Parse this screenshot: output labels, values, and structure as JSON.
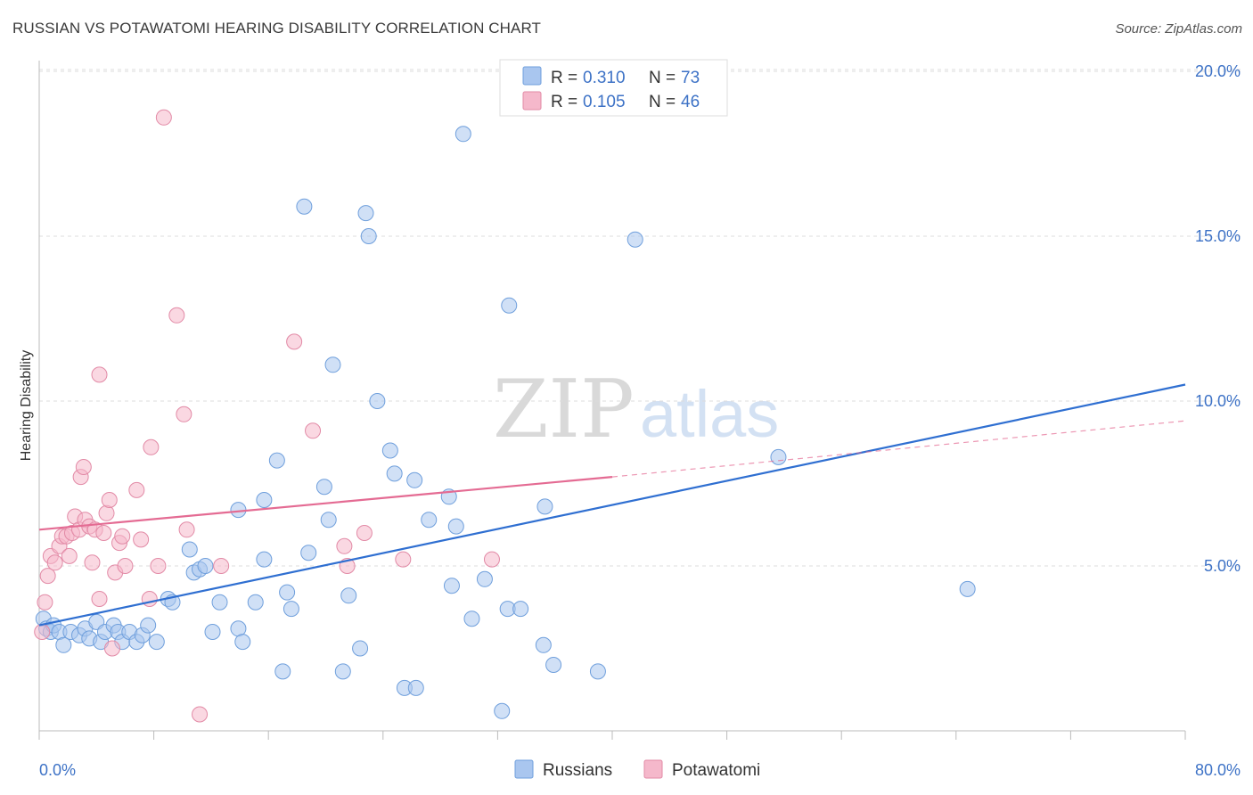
{
  "title": "RUSSIAN VS POTAWATOMI HEARING DISABILITY CORRELATION CHART",
  "source": "Source: ZipAtlas.com",
  "watermark": {
    "zip": "ZIP",
    "atlas": "atlas"
  },
  "legend": {
    "rows": [
      {
        "r_label": "R =",
        "r_value": "0.310",
        "n_label": "N =",
        "n_value": "73",
        "color": "#a9c6ef"
      },
      {
        "r_label": "R =",
        "r_value": "0.105",
        "n_label": "N =",
        "n_value": "46",
        "color": "#f5b8cb"
      }
    ]
  },
  "bottom_legend": {
    "series1": "Russians",
    "series2": "Potawatomi"
  },
  "chart_data": {
    "type": "scatter",
    "title": "RUSSIAN VS POTAWATOMI HEARING DISABILITY CORRELATION CHART",
    "ylabel": "Hearing Disability",
    "xlabel": "",
    "xlim": [
      0,
      80
    ],
    "ylim": [
      0,
      20
    ],
    "x_tick_labels": [
      "0.0%",
      "80.0%"
    ],
    "y_ticks": [
      5,
      10,
      15,
      20
    ],
    "y_tick_labels": [
      "5.0%",
      "10.0%",
      "15.0%",
      "20.0%"
    ],
    "grid": "horizontal dashed",
    "legend_position": "top-center",
    "series": [
      {
        "name": "Russians",
        "color": "#a9c6ef",
        "stroke": "#6f9fdc",
        "trend": {
          "x": [
            0,
            80
          ],
          "y": [
            3.2,
            10.5
          ],
          "color": "#2f6fd1"
        },
        "points": [
          [
            0.3,
            3.4
          ],
          [
            0.5,
            3.1
          ],
          [
            0.8,
            3.0
          ],
          [
            1.0,
            3.2
          ],
          [
            1.4,
            3.0
          ],
          [
            1.7,
            2.6
          ],
          [
            2.2,
            3.0
          ],
          [
            2.8,
            2.9
          ],
          [
            3.2,
            3.1
          ],
          [
            3.5,
            2.8
          ],
          [
            4.0,
            3.3
          ],
          [
            4.3,
            2.7
          ],
          [
            4.6,
            3.0
          ],
          [
            5.2,
            3.2
          ],
          [
            5.5,
            3.0
          ],
          [
            5.8,
            2.7
          ],
          [
            6.3,
            3.0
          ],
          [
            6.8,
            2.7
          ],
          [
            7.2,
            2.9
          ],
          [
            7.6,
            3.2
          ],
          [
            8.2,
            2.7
          ],
          [
            9.0,
            4.0
          ],
          [
            9.3,
            3.9
          ],
          [
            10.5,
            5.5
          ],
          [
            10.8,
            4.8
          ],
          [
            11.2,
            4.9
          ],
          [
            11.6,
            5.0
          ],
          [
            12.6,
            3.9
          ],
          [
            12.1,
            3.0
          ],
          [
            13.9,
            3.1
          ],
          [
            14.2,
            2.7
          ],
          [
            15.1,
            3.9
          ],
          [
            13.9,
            6.7
          ],
          [
            15.7,
            7.0
          ],
          [
            15.7,
            5.2
          ],
          [
            16.6,
            8.2
          ],
          [
            17.0,
            1.8
          ],
          [
            17.3,
            4.2
          ],
          [
            17.6,
            3.7
          ],
          [
            18.5,
            15.9
          ],
          [
            18.8,
            5.4
          ],
          [
            19.9,
            7.4
          ],
          [
            20.2,
            6.4
          ],
          [
            20.5,
            11.1
          ],
          [
            21.2,
            1.8
          ],
          [
            21.6,
            4.1
          ],
          [
            22.4,
            2.5
          ],
          [
            22.8,
            15.7
          ],
          [
            23.0,
            15.0
          ],
          [
            23.6,
            10.0
          ],
          [
            24.5,
            8.5
          ],
          [
            24.8,
            7.8
          ],
          [
            25.5,
            1.3
          ],
          [
            26.3,
            1.3
          ],
          [
            26.2,
            7.6
          ],
          [
            27.2,
            6.4
          ],
          [
            28.6,
            7.1
          ],
          [
            28.8,
            4.4
          ],
          [
            29.1,
            6.2
          ],
          [
            29.6,
            18.1
          ],
          [
            30.2,
            3.4
          ],
          [
            31.1,
            4.6
          ],
          [
            32.3,
            0.6
          ],
          [
            32.7,
            3.7
          ],
          [
            32.8,
            12.9
          ],
          [
            33.6,
            3.7
          ],
          [
            35.2,
            2.6
          ],
          [
            35.3,
            6.8
          ],
          [
            35.9,
            2.0
          ],
          [
            39.0,
            1.8
          ],
          [
            41.6,
            14.9
          ],
          [
            51.6,
            8.3
          ],
          [
            64.8,
            4.3
          ]
        ]
      },
      {
        "name": "Potawatomi",
        "color": "#f5b8cb",
        "stroke": "#e28aa6",
        "trend": {
          "x": [
            0,
            40
          ],
          "y": [
            6.1,
            7.7
          ],
          "dashed_to": [
            80,
            9.4
          ],
          "color": "#e46b93"
        },
        "points": [
          [
            0.2,
            3.0
          ],
          [
            0.4,
            3.9
          ],
          [
            0.6,
            4.7
          ],
          [
            0.8,
            5.3
          ],
          [
            1.1,
            5.1
          ],
          [
            1.4,
            5.6
          ],
          [
            1.6,
            5.9
          ],
          [
            1.9,
            5.9
          ],
          [
            2.1,
            5.3
          ],
          [
            2.3,
            6.0
          ],
          [
            2.5,
            6.5
          ],
          [
            2.8,
            6.1
          ],
          [
            2.9,
            7.7
          ],
          [
            3.1,
            8.0
          ],
          [
            3.2,
            6.4
          ],
          [
            3.5,
            6.2
          ],
          [
            3.7,
            5.1
          ],
          [
            3.9,
            6.1
          ],
          [
            4.2,
            4.0
          ],
          [
            4.2,
            10.8
          ],
          [
            4.5,
            6.0
          ],
          [
            4.7,
            6.6
          ],
          [
            4.9,
            7.0
          ],
          [
            5.1,
            2.5
          ],
          [
            5.3,
            4.8
          ],
          [
            5.6,
            5.7
          ],
          [
            5.8,
            5.9
          ],
          [
            6.0,
            5.0
          ],
          [
            6.8,
            7.3
          ],
          [
            7.1,
            5.8
          ],
          [
            7.7,
            4.0
          ],
          [
            7.8,
            8.6
          ],
          [
            8.3,
            5.0
          ],
          [
            8.7,
            18.6
          ],
          [
            9.6,
            12.6
          ],
          [
            10.1,
            9.6
          ],
          [
            10.3,
            6.1
          ],
          [
            11.2,
            0.5
          ],
          [
            12.7,
            5.0
          ],
          [
            17.8,
            11.8
          ],
          [
            19.1,
            9.1
          ],
          [
            21.3,
            5.6
          ],
          [
            21.5,
            5.0
          ],
          [
            22.7,
            6.0
          ],
          [
            25.4,
            5.2
          ],
          [
            31.6,
            5.2
          ]
        ]
      }
    ]
  }
}
